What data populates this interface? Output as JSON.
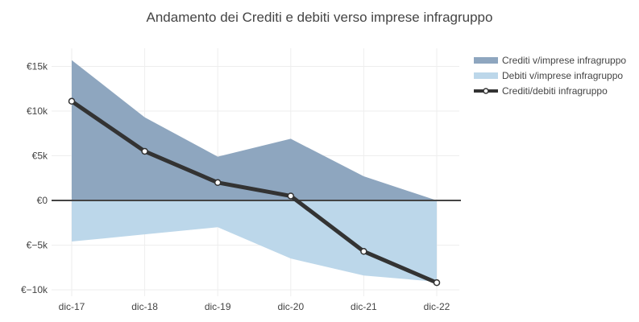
{
  "chart_data": {
    "type": "area",
    "title": "Andamento dei Crediti e debiti verso imprese infragruppo",
    "xlabel": "",
    "ylabel": "",
    "categories": [
      "dic-17",
      "dic-18",
      "dic-19",
      "dic-20",
      "dic-21",
      "dic-22"
    ],
    "ylim": [
      -10500,
      17000
    ],
    "y_ticks": [
      15000,
      10000,
      5000,
      0,
      -5000,
      -10000
    ],
    "y_tick_labels": [
      "€15k",
      "€10k",
      "€5k",
      "€0",
      "€−5k",
      "€−10k"
    ],
    "grid": true,
    "legend_position": "top-right",
    "series": [
      {
        "name": "Crediti v/imprese infragruppo",
        "kind": "area",
        "color": "#8ea6bf",
        "values": [
          15700,
          9300,
          4900,
          6900,
          2700,
          0
        ]
      },
      {
        "name": "Debiti v/imprese infragruppo",
        "kind": "area",
        "color": "#bcd7ea",
        "values": [
          -4600,
          -3800,
          -3000,
          -6500,
          -8400,
          -9100
        ]
      },
      {
        "name": "Crediti/debiti infragruppo",
        "kind": "line",
        "color": "#333333",
        "values": [
          11100,
          5500,
          2000,
          500,
          -5700,
          -9200
        ]
      }
    ]
  }
}
